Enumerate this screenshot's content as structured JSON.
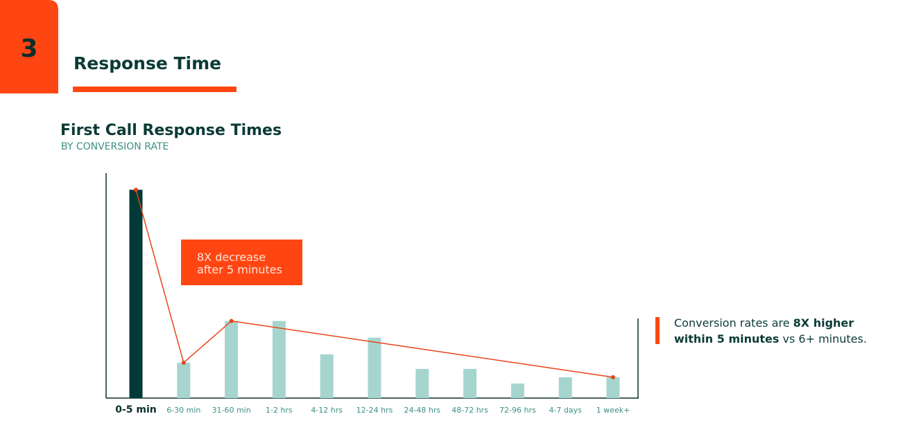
{
  "section": {
    "number": "3",
    "title": "Response Time"
  },
  "chart_data": {
    "type": "bar",
    "title": "First Call Response Times",
    "subtitle": "BY CONVERSION RATE",
    "categories": [
      "0-5 min",
      "6-30 min",
      "31-60 min",
      "1-2 hrs",
      "4-12 hrs",
      "12-24 hrs",
      "24-48 hrs",
      "48-72 hrs",
      "72-96 hrs",
      "4-7 days",
      "1 week+"
    ],
    "values": [
      100,
      17,
      37,
      37,
      21,
      29,
      14,
      14,
      7,
      10,
      10
    ],
    "color": "#a6d5cf",
    "colors": [
      "#003a36",
      "#a6d5cf",
      "#a6d5cf",
      "#a6d5cf",
      "#a6d5cf",
      "#a6d5cf",
      "#a6d5cf",
      "#a6d5cf",
      "#a6d5cf",
      "#a6d5cf",
      "#a6d5cf"
    ],
    "line": {
      "color": "#e8431c",
      "values": [
        100,
        17,
        37,
        null,
        null,
        null,
        null,
        null,
        null,
        null,
        10
      ]
    },
    "ylim": [
      0,
      108
    ],
    "annotation": [
      "8X decrease",
      "after 5 minutes"
    ]
  },
  "callout": [
    [
      {
        "text": "Conversion rates are ",
        "bold": false
      },
      {
        "text": "8X higher",
        "bold": true
      }
    ],
    [
      {
        "text": "within 5 minutes",
        "bold": true
      },
      {
        "text": " vs 6+ minutes.",
        "bold": false
      }
    ]
  ]
}
